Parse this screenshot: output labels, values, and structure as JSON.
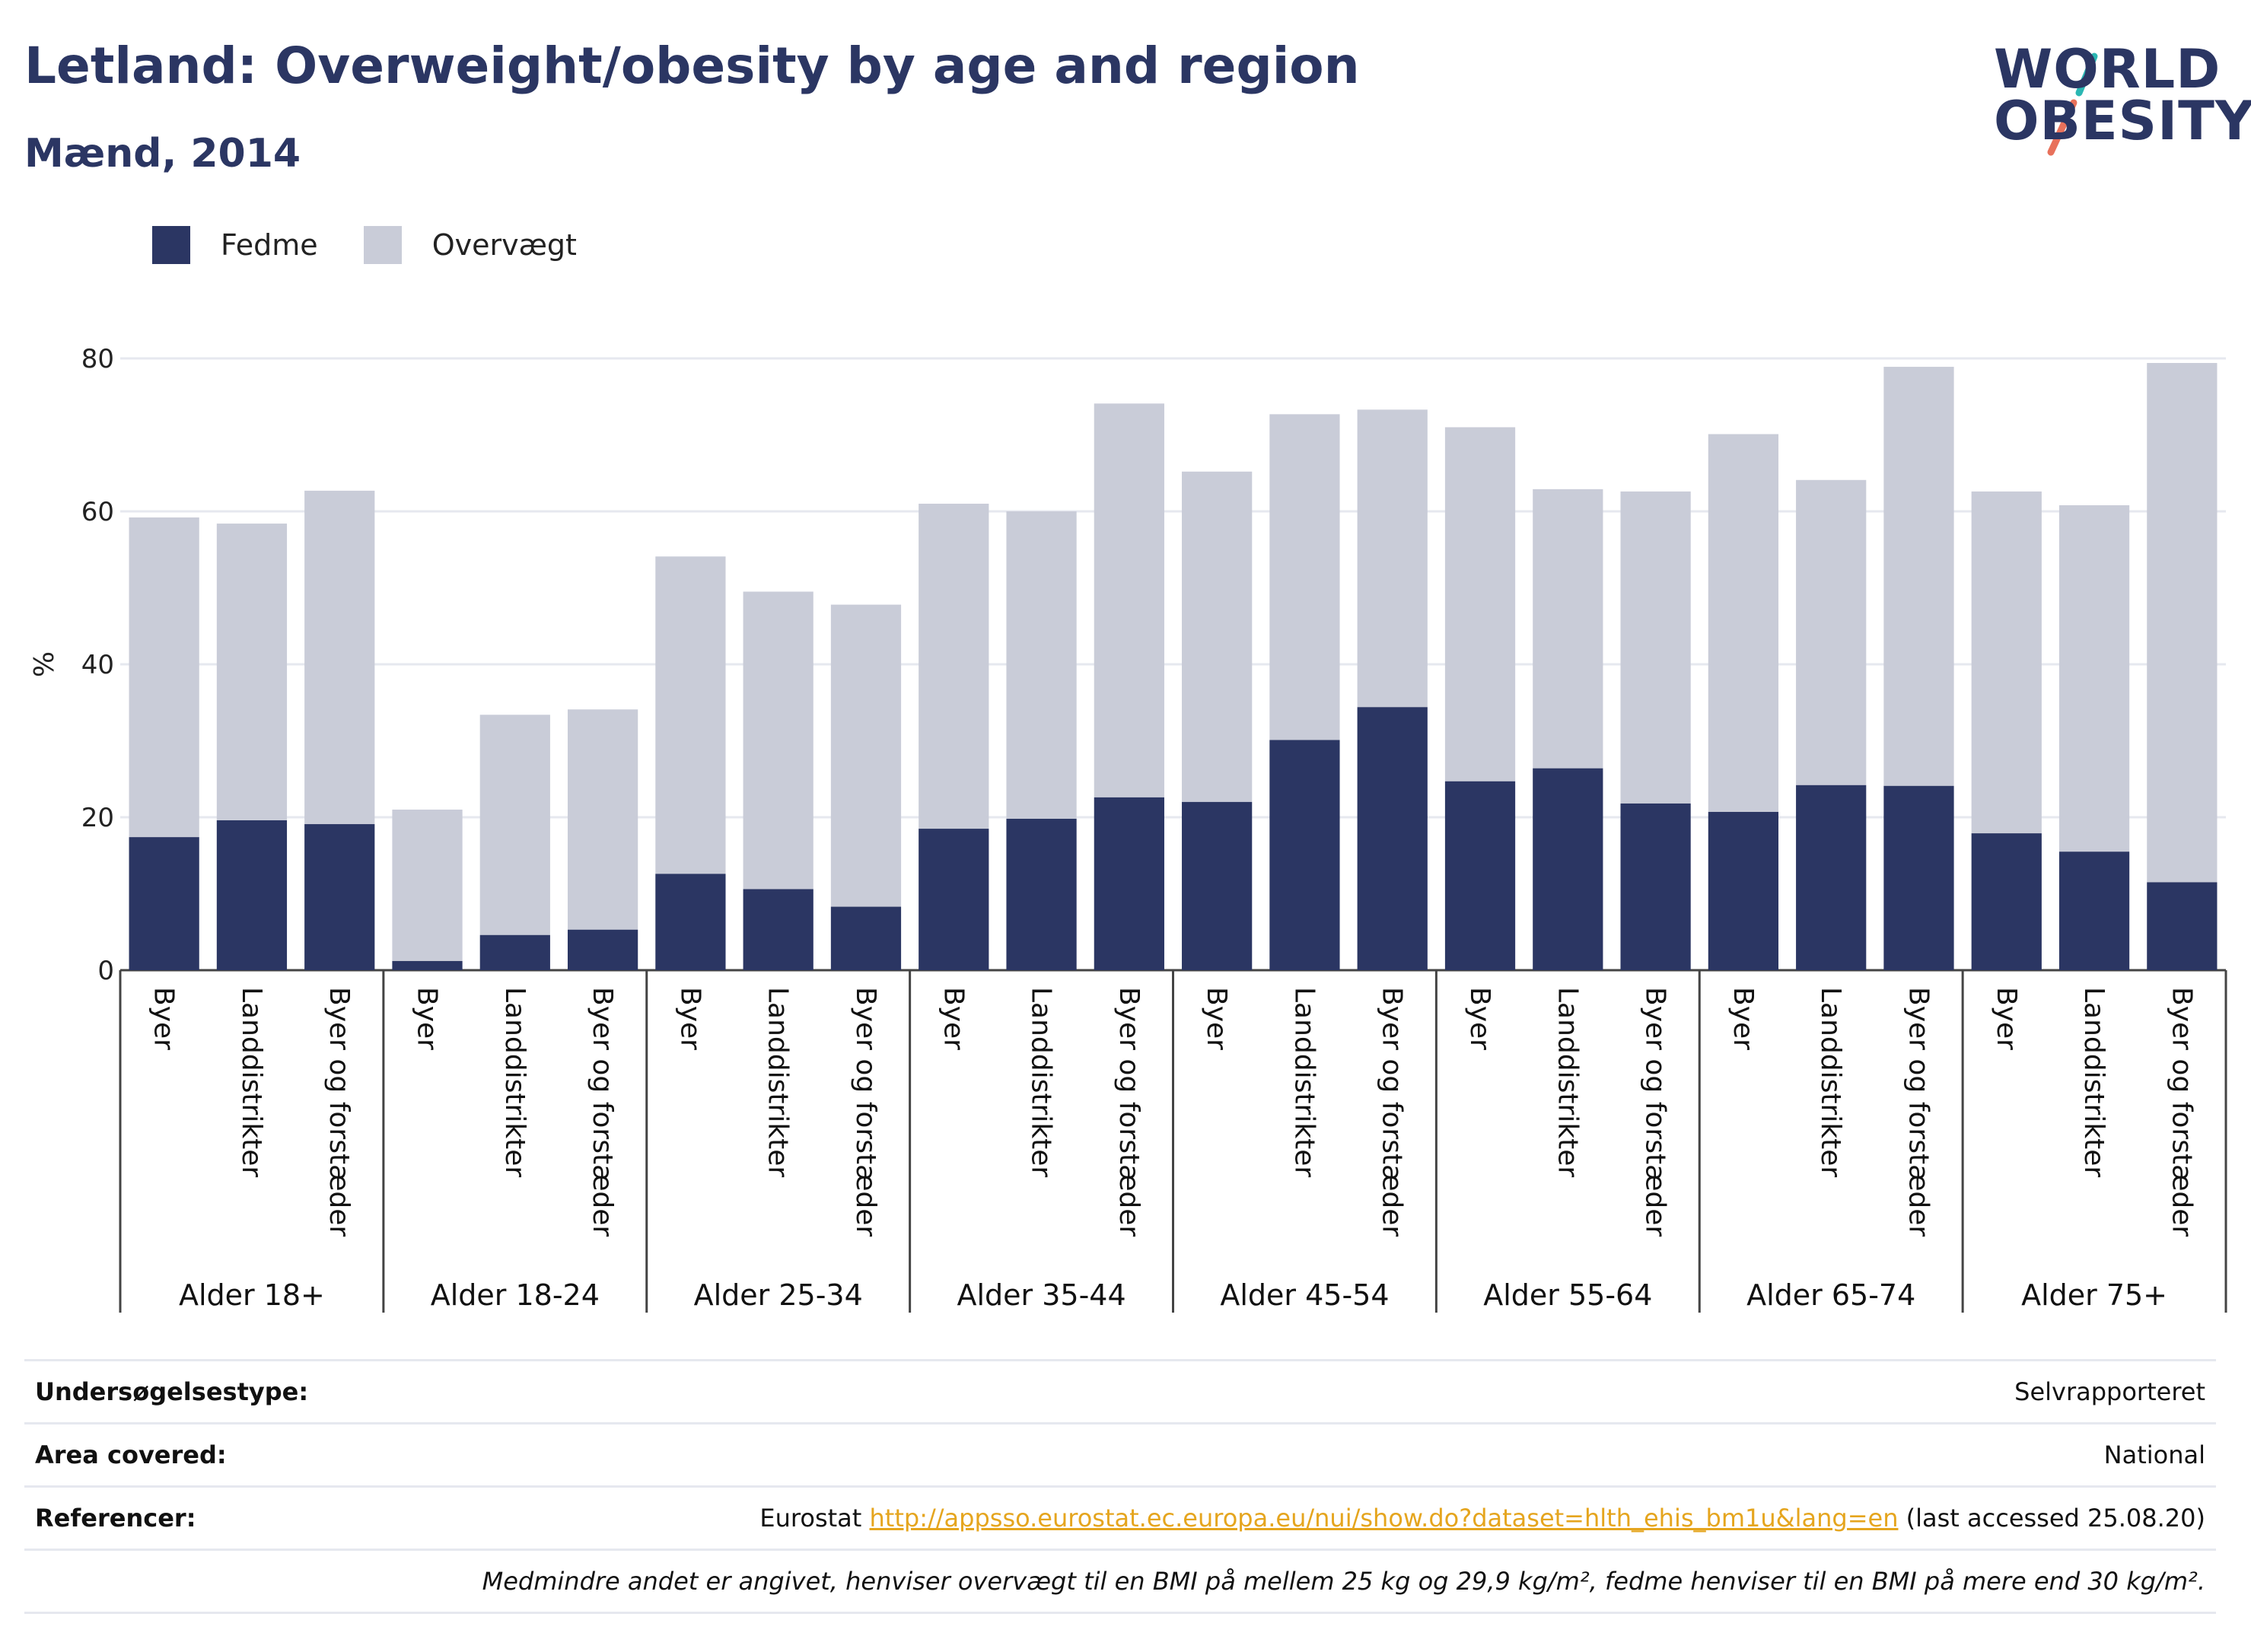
{
  "header": {
    "title": "Letland: Overweight/obesity by age and region",
    "subtitle": "Mænd, 2014"
  },
  "logo": {
    "line1": "WORLD",
    "line2": "OBESITY"
  },
  "colors": {
    "fedme": "#2b3663",
    "overvaegt": "#c9ccd8",
    "title": "#2b3663",
    "link": "#e5a51e"
  },
  "legend": {
    "fedme": "Fedme",
    "overvaegt": "Overvægt"
  },
  "chart_data": {
    "type": "bar",
    "stacked": true,
    "ylabel": "%",
    "ylim": [
      0,
      80
    ],
    "yticks": [
      0,
      20,
      40,
      60,
      80
    ],
    "grid": true,
    "legend_position": "top-left",
    "groups": [
      "Alder 18+",
      "Alder 18-24",
      "Alder 25-34",
      "Alder 35-44",
      "Alder 45-54",
      "Alder 55-64",
      "Alder 65-74",
      "Alder 75+"
    ],
    "subcategories": [
      "Byer",
      "Landdistrikter",
      "Byer og forstæder"
    ],
    "series": [
      {
        "name": "Fedme",
        "values": [
          17.4,
          19.6,
          19.1,
          1.2,
          4.6,
          5.3,
          12.6,
          10.6,
          8.3,
          18.5,
          19.8,
          22.6,
          22.0,
          30.1,
          34.4,
          24.7,
          26.4,
          21.8,
          20.7,
          24.2,
          24.1,
          17.9,
          15.5,
          11.5
        ]
      },
      {
        "name": "Overvægt",
        "values": [
          41.8,
          38.8,
          43.6,
          19.8,
          28.8,
          28.8,
          41.5,
          38.9,
          39.5,
          42.5,
          40.2,
          51.5,
          43.2,
          42.6,
          38.9,
          46.3,
          36.5,
          40.8,
          49.4,
          39.9,
          54.8,
          44.7,
          45.3,
          67.9
        ]
      }
    ]
  },
  "info": {
    "survey_label": "Undersøgelsestype:",
    "survey_value": "Selvrapporteret",
    "area_label": "Area covered:",
    "area_value": "National",
    "ref_label": "Referencer:",
    "ref_prefix": "Eurostat ",
    "ref_link": "http://appsso.eurostat.ec.europa.eu/nui/show.do?dataset=hlth_ehis_bm1u&lang=en",
    "ref_suffix": " (last accessed 25.08.20)",
    "note": "Medmindre andet er angivet, henviser overvægt til en BMI på mellem 25 kg og 29,9 kg/m², fedme henviser til en BMI på mere end 30 kg/m²."
  }
}
